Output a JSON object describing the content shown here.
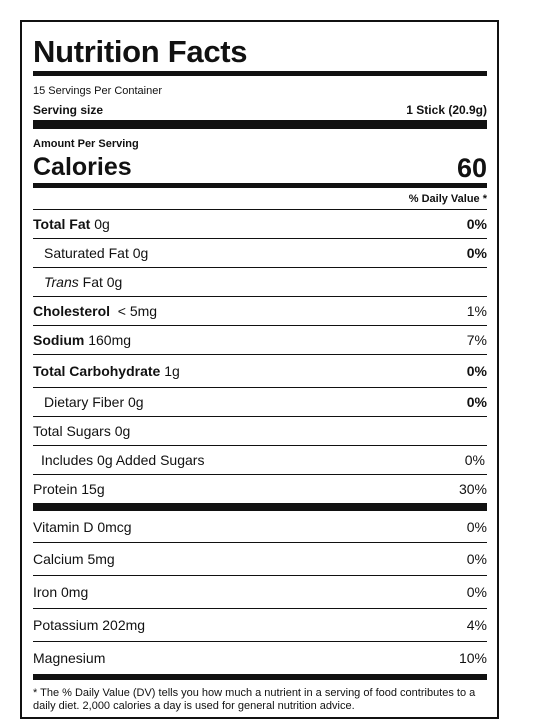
{
  "title": "Nutrition Facts",
  "servings_per_container": "15 Servings Per Container",
  "serving_size_label": "Serving size",
  "serving_size_value": "1 Stick (20.9g)",
  "amount_per_serving": "Amount Per Serving",
  "calories_label": "Calories",
  "calories_value": "60",
  "dv_header": "% Daily Value *",
  "rows": {
    "total_fat": {
      "label": "Total Fat",
      "amount": "0g",
      "dv": "0%"
    },
    "saturated_fat": {
      "label": "Saturated Fat 0g",
      "dv": "0%"
    },
    "trans_fat": {
      "label_italic": "Trans",
      "label": "Fat 0g"
    },
    "cholesterol": {
      "label": "Cholesterol",
      "amount": "< 5mg",
      "dv": "1%"
    },
    "sodium": {
      "label": "Sodium",
      "amount": "160mg",
      "dv": "7%"
    },
    "total_carb": {
      "label": "Total Carbohydrate",
      "amount": "1g",
      "dv": "0%"
    },
    "dietary_fiber": {
      "label": "Dietary Fiber 0g",
      "dv": "0%"
    },
    "total_sugars": {
      "label": "Total Sugars 0g"
    },
    "added_sugars": {
      "label": "Includes 0g Added Sugars",
      "dv": "0%"
    },
    "protein": {
      "label": "Protein 15g",
      "dv": "30%"
    },
    "vitamin_d": {
      "label": "Vitamin D 0mcg",
      "dv": "0%"
    },
    "calcium": {
      "label": "Calcium 5mg",
      "dv": "0%"
    },
    "iron": {
      "label": "Iron 0mg",
      "dv": "0%"
    },
    "potassium": {
      "label": "Potassium 202mg",
      "dv": "4%"
    },
    "magnesium": {
      "label": "Magnesium",
      "dv": "10%"
    }
  },
  "footnote": "* The % Daily Value (DV) tells you how much a nutrient in a serving of food contributes to a daily diet. 2,000 calories a day is used for general nutrition advice."
}
